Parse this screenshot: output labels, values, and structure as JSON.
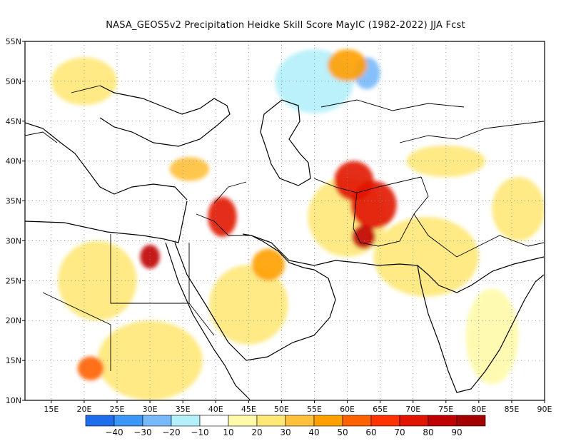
{
  "title": "NASA_GEOS5v2  Precipitation Heidke Skill Score MayIC (1982-2022) JJA Fcst",
  "map": {
    "lon_range": [
      11,
      90
    ],
    "lat_range": [
      10,
      55
    ],
    "lon_ticks": [
      {
        "lon": 15,
        "label": "15E"
      },
      {
        "lon": 20,
        "label": "20E"
      },
      {
        "lon": 25,
        "label": "25E"
      },
      {
        "lon": 30,
        "label": "30E"
      },
      {
        "lon": 35,
        "label": "35E"
      },
      {
        "lon": 40,
        "label": "40E"
      },
      {
        "lon": 45,
        "label": "45E"
      },
      {
        "lon": 50,
        "label": "50E"
      },
      {
        "lon": 55,
        "label": "55E"
      },
      {
        "lon": 60,
        "label": "60E"
      },
      {
        "lon": 65,
        "label": "65E"
      },
      {
        "lon": 70,
        "label": "70E"
      },
      {
        "lon": 75,
        "label": "75E"
      },
      {
        "lon": 80,
        "label": "80E"
      },
      {
        "lon": 85,
        "label": "85E"
      },
      {
        "lon": 90,
        "label": "90E"
      }
    ],
    "lat_ticks": [
      {
        "lat": 10,
        "label": "10N"
      },
      {
        "lat": 15,
        "label": "15N"
      },
      {
        "lat": 20,
        "label": "20N"
      },
      {
        "lat": 25,
        "label": "25N"
      },
      {
        "lat": 30,
        "label": "30N"
      },
      {
        "lat": 35,
        "label": "35N"
      },
      {
        "lat": 40,
        "label": "40N"
      },
      {
        "lat": 45,
        "label": "45N"
      },
      {
        "lat": 50,
        "label": "50N"
      },
      {
        "lat": 55,
        "label": "55N"
      }
    ],
    "skill_patches": [
      {
        "lon": 61,
        "lat": 37.5,
        "rx": 3.0,
        "ry": 2.5,
        "level": 70
      },
      {
        "lon": 64,
        "lat": 34.5,
        "rx": 3.5,
        "ry": 3.0,
        "level": 70
      },
      {
        "lon": 62.5,
        "lat": 30.5,
        "rx": 1.8,
        "ry": 1.5,
        "level": 80
      },
      {
        "lon": 41,
        "lat": 33,
        "rx": 2.2,
        "ry": 2.5,
        "level": 70
      },
      {
        "lon": 30,
        "lat": 28,
        "rx": 1.5,
        "ry": 1.5,
        "level": 80
      },
      {
        "lon": 21,
        "lat": 14,
        "rx": 2.0,
        "ry": 1.5,
        "level": 50
      },
      {
        "lon": 48,
        "lat": 27,
        "rx": 2.5,
        "ry": 2.0,
        "level": 40
      },
      {
        "lon": 36,
        "lat": 39,
        "rx": 3.0,
        "ry": 1.5,
        "level": 30
      },
      {
        "lon": 60,
        "lat": 52,
        "rx": 3.0,
        "ry": 2.0,
        "level": 40
      },
      {
        "lon": 55,
        "lat": 50,
        "rx": 6.0,
        "ry": 4.0,
        "level": -20
      },
      {
        "lon": 63,
        "lat": 51,
        "rx": 2.0,
        "ry": 2.0,
        "level": -30
      },
      {
        "lon": 78,
        "lat": 45,
        "rx": 8.0,
        "ry": 4.0,
        "level": -10
      },
      {
        "lon": 48,
        "lat": 43,
        "rx": 3.0,
        "ry": 3.0,
        "level": -10
      },
      {
        "lon": 72,
        "lat": 28,
        "rx": 8.0,
        "ry": 5.0,
        "level": 20
      },
      {
        "lon": 86,
        "lat": 34,
        "rx": 4.0,
        "ry": 4.0,
        "level": 20
      },
      {
        "lon": 22,
        "lat": 25,
        "rx": 6.0,
        "ry": 5.0,
        "level": 20
      },
      {
        "lon": 30,
        "lat": 15,
        "rx": 8.0,
        "ry": 5.0,
        "level": 20
      },
      {
        "lon": 45,
        "lat": 22,
        "rx": 6.0,
        "ry": 5.0,
        "level": 20
      },
      {
        "lon": 60,
        "lat": 33,
        "rx": 6.0,
        "ry": 5.0,
        "level": 20
      },
      {
        "lon": 75,
        "lat": 40,
        "rx": 6.0,
        "ry": 2.0,
        "level": 20
      },
      {
        "lon": 20,
        "lat": 50,
        "rx": 5.0,
        "ry": 3.0,
        "level": 20
      },
      {
        "lon": 82,
        "lat": 18,
        "rx": 4.0,
        "ry": 6.0,
        "level": 10
      }
    ]
  },
  "colorbar": {
    "labels": [
      {
        "value": -40,
        "label": "−40"
      },
      {
        "value": -30,
        "label": "−30"
      },
      {
        "value": -20,
        "label": "−20"
      },
      {
        "value": -10,
        "label": "−10"
      },
      {
        "value": 10,
        "label": "10"
      },
      {
        "value": 20,
        "label": "20"
      },
      {
        "value": 30,
        "label": "30"
      },
      {
        "value": 40,
        "label": "40"
      },
      {
        "value": 50,
        "label": "50"
      },
      {
        "value": 60,
        "label": "60"
      },
      {
        "value": 70,
        "label": "70"
      },
      {
        "value": 80,
        "label": "80"
      },
      {
        "value": 90,
        "label": "90"
      }
    ],
    "bins": [
      {
        "level": -50,
        "color": "#1e6eeb"
      },
      {
        "level": -40,
        "color": "#3c96f5"
      },
      {
        "level": -30,
        "color": "#78b9fa"
      },
      {
        "level": -20,
        "color": "#b4f0fa"
      },
      {
        "level": -10,
        "color": "#ffffff"
      },
      {
        "level": 10,
        "color": "#fffaaa"
      },
      {
        "level": 20,
        "color": "#ffe878"
      },
      {
        "level": 30,
        "color": "#ffc03c"
      },
      {
        "level": 40,
        "color": "#ffa000"
      },
      {
        "level": 50,
        "color": "#ff6000"
      },
      {
        "level": 60,
        "color": "#ff3200"
      },
      {
        "level": 70,
        "color": "#e11400"
      },
      {
        "level": 80,
        "color": "#c00000"
      },
      {
        "level": 90,
        "color": "#a50000"
      }
    ]
  }
}
